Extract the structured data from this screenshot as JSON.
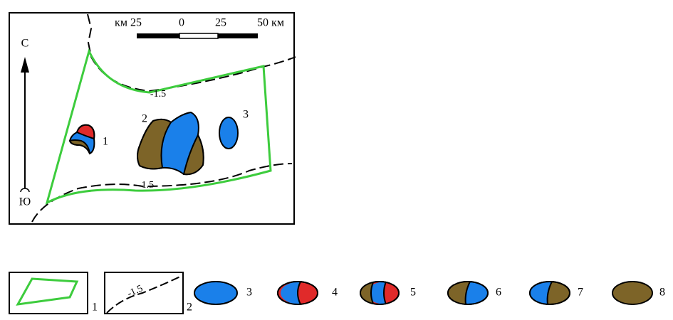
{
  "map": {
    "scale": {
      "labels": [
        "км 25",
        "0",
        "25",
        "50 км"
      ]
    },
    "north": "С",
    "south": "Ю",
    "contours": [
      "-1.5",
      "-1.5"
    ],
    "objects": [
      "1",
      "2",
      "3"
    ]
  },
  "legend": {
    "items": [
      "1",
      "2",
      "3",
      "4",
      "5",
      "6",
      "7",
      "8"
    ],
    "contour_label": "-1.5"
  }
}
